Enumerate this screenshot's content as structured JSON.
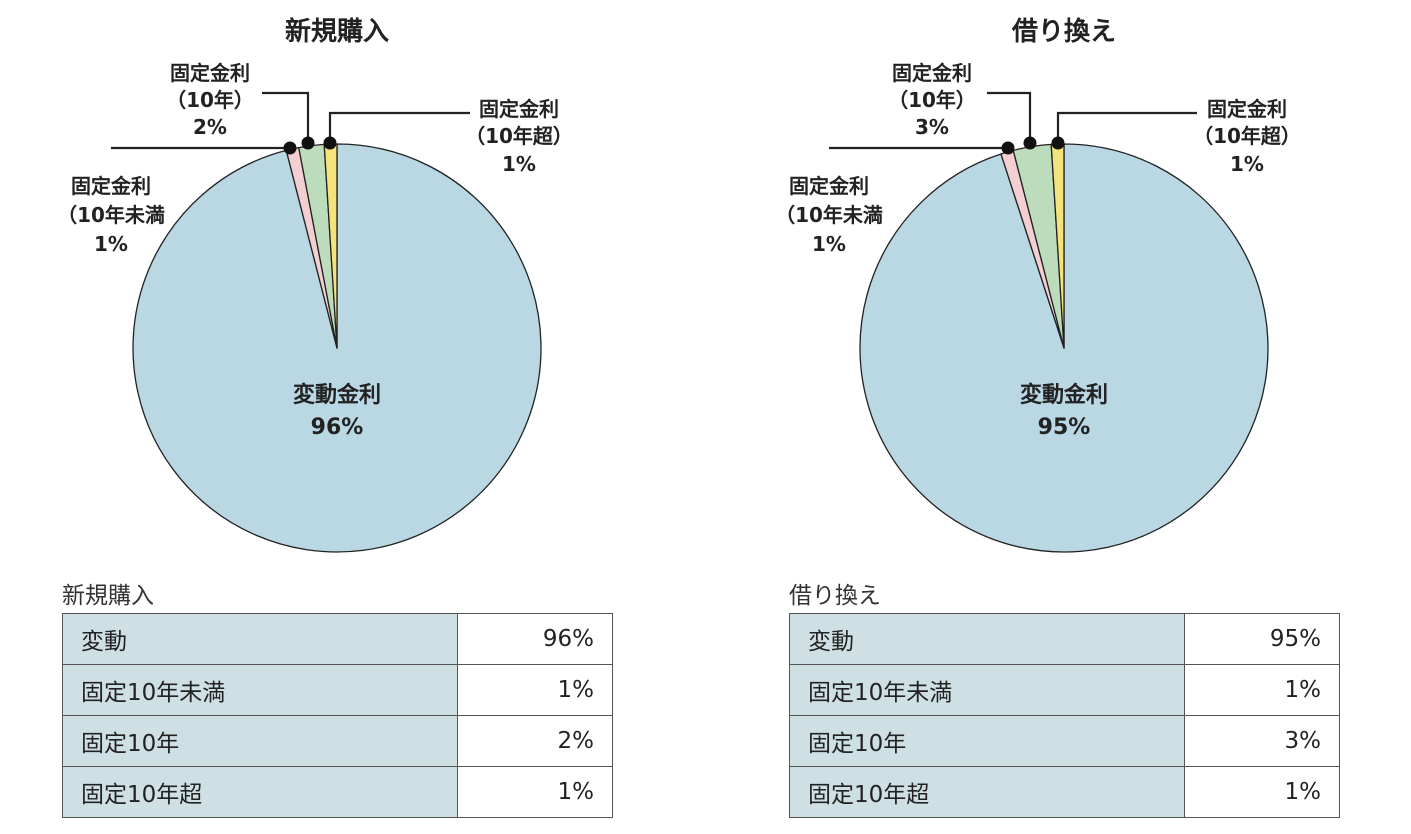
{
  "chart_data": [
    {
      "type": "pie",
      "title": "新規購入",
      "slices": [
        {
          "label": [
            "変動金利",
            "96%"
          ],
          "value": 96,
          "color": "#b9d8e4"
        },
        {
          "label": [
            "固定金利",
            "（10年未満",
            "1%"
          ],
          "value": 1,
          "color": "#f3cfd2"
        },
        {
          "label": [
            "固定金利",
            "（10年）",
            "2%"
          ],
          "value": 2,
          "color": "#bcdcbc"
        },
        {
          "label": [
            "固定金利",
            "（10年超）",
            "1%"
          ],
          "value": 1,
          "color": "#f4e27a"
        }
      ]
    },
    {
      "type": "pie",
      "title": "借り換え",
      "slices": [
        {
          "label": [
            "変動金利",
            "95%"
          ],
          "value": 95,
          "color": "#b9d8e4"
        },
        {
          "label": [
            "固定金利",
            "（10年未満",
            "1%"
          ],
          "value": 1,
          "color": "#f3cfd2"
        },
        {
          "label": [
            "固定金利",
            "（10年）",
            "3%"
          ],
          "value": 3,
          "color": "#bcdcbc"
        },
        {
          "label": [
            "固定金利",
            "（10年超）",
            "1%"
          ],
          "value": 1,
          "color": "#f4e27a"
        }
      ]
    }
  ],
  "tables": [
    {
      "caption": "新規購入",
      "rows": [
        {
          "label": "変動",
          "value": "96%"
        },
        {
          "label": "固定10年未満",
          "value": "1%"
        },
        {
          "label": "固定10年",
          "value": "2%"
        },
        {
          "label": "固定10年超",
          "value": "1%"
        }
      ]
    },
    {
      "caption": "借り換え",
      "rows": [
        {
          "label": "変動",
          "value": "95%"
        },
        {
          "label": "固定10年未満",
          "value": "1%"
        },
        {
          "label": "固定10年",
          "value": "3%"
        },
        {
          "label": "固定10年超",
          "value": "1%"
        }
      ]
    }
  ]
}
